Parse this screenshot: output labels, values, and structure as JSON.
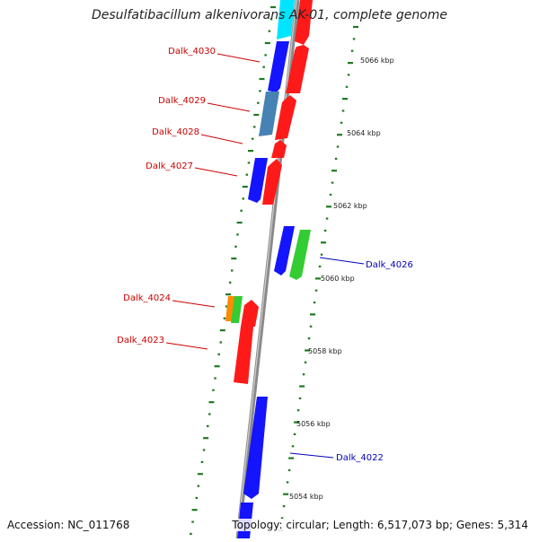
{
  "title": "Desulfatibacillum alkenivorans AK-01, complete genome",
  "footer": {
    "accession": "Accession: NC_011768",
    "topology": "Topology: circular; Length: 6,517,073 bp; Genes: 5,314"
  },
  "colors": {
    "backbone": "#8a8a8a",
    "tick": "#1e7a1e",
    "label_left": "#cc0000",
    "label_right": "#0000bb",
    "gene_red": "#ff1a1a",
    "gene_blue": "#1414ff",
    "gene_steel": "#4682b4",
    "gene_cyan": "#00e5ff",
    "gene_green": "#33cc33",
    "gene_orange": "#ff8c00"
  },
  "scale_labels": [
    "5066 kbp",
    "5064 kbp",
    "5062 kbp",
    "5060 kbp",
    "5058 kbp",
    "5056 kbp",
    "5054 kbp"
  ],
  "gene_labels": [
    {
      "id": "Dalk_4030",
      "side": "left"
    },
    {
      "id": "Dalk_4029",
      "side": "left"
    },
    {
      "id": "Dalk_4028",
      "side": "left"
    },
    {
      "id": "Dalk_4027",
      "side": "left"
    },
    {
      "id": "Dalk_4026",
      "side": "right"
    },
    {
      "id": "Dalk_4024",
      "side": "left"
    },
    {
      "id": "Dalk_4023",
      "side": "left"
    },
    {
      "id": "Dalk_4022",
      "side": "right"
    }
  ]
}
